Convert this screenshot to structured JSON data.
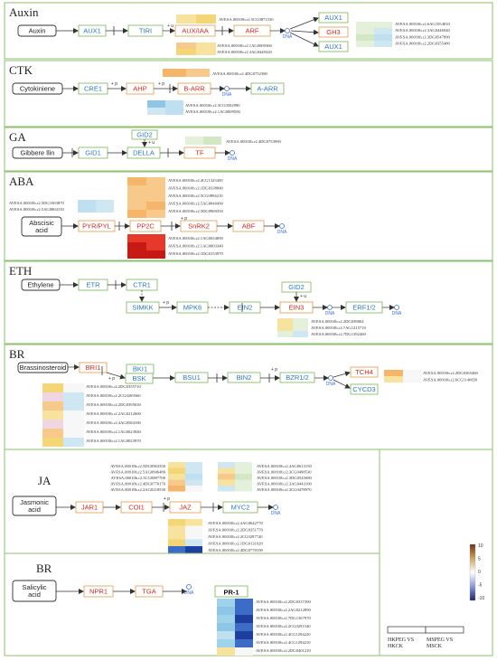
{
  "colors": {
    "panel_border": "#8cc26e",
    "green_border": "#7ab857",
    "blue_text": "#2a7ab8",
    "red_text": "#d42a1e",
    "orange_border": "#e39b4c",
    "arrow": "#333333",
    "dna_circle": "#3a6fd8"
  },
  "sections": {
    "auxin": {
      "title": "Auxin",
      "start": "Auxin",
      "nodes": [
        "AUX1",
        "TIRI",
        "AUX/IAA",
        "ARF",
        "AUX1",
        "GH3",
        "AUX1"
      ],
      "sign": "+ u",
      "genes_top": [
        "AVESA.00010b.r2.5CG0871530"
      ],
      "genes_bottom": [
        "AVESA.00010b.r2.1AG0009360",
        "AVESA.00010b.r2.3AG0449320"
      ],
      "genes_right": [
        "AVESA.00010b.r2.6AG1054810",
        "AVESA.00010b.r2.3AG0446940",
        "AVESA.00010b.r2.3DG0547890",
        "AVESA.00010b.r2.2DG0355480"
      ]
    },
    "ctk": {
      "title": "CTK",
      "start": "Cytokiniene",
      "nodes": [
        "CRE1",
        "AHP",
        "B-ARR",
        "A-ARR"
      ],
      "signs": [
        "+ p",
        "+ p"
      ],
      "genes_top": [
        "AVESA.00010b.r2.4DG0752380"
      ],
      "genes_bottom": [
        "AVESA.00010b.r2.3CG0502990",
        "AVESA.00010b.r2.1AG0009500"
      ]
    },
    "ga": {
      "title": "GA",
      "start": "Gibbere llin",
      "nodes": [
        "GID2",
        "GID1",
        "DELLA",
        "TF"
      ],
      "sign": "+ u",
      "genes": [
        "AVESA.00010b.r2.4DG0753990"
      ]
    },
    "aba": {
      "title": "ABA",
      "start": "Abscisic\nacid",
      "nodes": [
        "PYR/PYL",
        "PP2C",
        "SnRK2",
        "ABF"
      ],
      "sign": "+ p",
      "genes_left": [
        "AVESA.00010b.r2.5DG1003870",
        "AVESA.00010b.r2.5AG0804150"
      ],
      "genes_top": [
        "AVESA.00010b.r2.4CG1325450",
        "AVESA.00010b.r2.1DG0338840",
        "AVESA.00010b.r2.5CG0894210",
        "AVESA.00010b.r2.5AG0840490",
        "AVESA.00010b.r2.5DG0969350"
      ],
      "genes_bottom": [
        "AVESA.00010b.r2.1AG0034890",
        "AVESA.00010b.r2.1AG0003340",
        "AVESA.00010b.r2.1DG0153970"
      ]
    },
    "eth": {
      "title": "ETH",
      "start": "Ethylene",
      "nodes": [
        "ETR",
        "CTR1",
        "SIMKK",
        "MPK6",
        "EIN2",
        "GID2",
        "EIN3",
        "ERF1/2"
      ],
      "signs": [
        "+ p",
        "+ u"
      ],
      "genes": [
        "AVESA.00010b.r2.2DG039804",
        "AVESA.00010b.r2.7AG1215710",
        "AVESA.00010b.r2.7DG1392460"
      ]
    },
    "br": {
      "title": "BR",
      "start": "Brassinosteroid",
      "nodes": [
        "BRI1",
        "BKI1",
        "BSK",
        "BSU1",
        "BIN2",
        "BZR1/2",
        "TCH4",
        "CYCD3"
      ],
      "signs": [
        "+ p",
        "+ p"
      ],
      "genes_left": [
        "AVESA.00010b.r2.2DG0355710",
        "AVESA.00010b.r2.2CG0269560",
        "AVESA.00010b.r2.2DG0395630",
        "AVESA.00010b.r2.2AG0212600",
        "AVESA.00010b.r2.4AG0584180",
        "AVESA.00010b.r2.1AG0023940",
        "AVESA.00010b.r2.1AG0023970"
      ],
      "genes_right": [
        "AVESA.00010b.r2.2DG0365460",
        "AVESA.00010b.r2.6CG1140650"
      ]
    },
    "ja": {
      "title": "JA",
      "start": "Jasmonic\nacid",
      "nodes": [
        "JAR1",
        "COI1",
        "JAZ",
        "MYC2"
      ],
      "sign": "+ p",
      "genes_left": [
        "AVESA.00010b.r2.5DG0963350",
        "AVESA.00010b.r2.5AG0846480",
        "AVESA.00010b.r2.5CG0887700",
        "AVESA.00010b.r2.4DG0770170",
        "AVESA.00010b.r2.2AG0218530"
      ],
      "genes_right": [
        "AVESA.00010b.r2.4AG0613150",
        "AVESA.00010b.r2.3CG0498530",
        "AVESA.00010b.r2.3DG0545680",
        "AVESA.00010b.r2.3AG0443100",
        "AVESA.00010b.r2.3CG0478970"
      ],
      "genes_bottom": [
        "AVESA.00010b.r2.4AG0642770",
        "AVESA.00010b.r2.2DG0351770",
        "AVESA.00010b.r2.2CG0297740",
        "AVESA.00010b.r2.1DG0131020",
        "AVESA.00010b.r2.4DG0770190"
      ]
    },
    "sa": {
      "title": "BR",
      "start": "Salicylic\nacid",
      "nodes": [
        "NPR1",
        "TGA",
        "PR-1"
      ],
      "genes": [
        "AVESA.00010b.r2.2DG0337390",
        "AVESA.00010b.r2.2AG0212890",
        "AVESA.00010b.r2.7DG1367970",
        "AVESA.00010b.r2.2CG0291540",
        "AVESA.00010b.r2.4CG1294220",
        "AVESA.00010b.r2.4CG1294210",
        "AVESA.00010b.r2.2DG0401210"
      ]
    }
  },
  "dna_label": "DNA",
  "legend": {
    "ticks": [
      "10",
      "5",
      "0",
      "-5",
      "-10"
    ],
    "colors_top_to_bottom": [
      "#6e3212",
      "#c8a664",
      "#ffffff",
      "#8a9bd1",
      "#1e2578"
    ],
    "columns": [
      "HKPEG VS\nHKCK",
      "MSPEG VS\nMSCK"
    ]
  }
}
